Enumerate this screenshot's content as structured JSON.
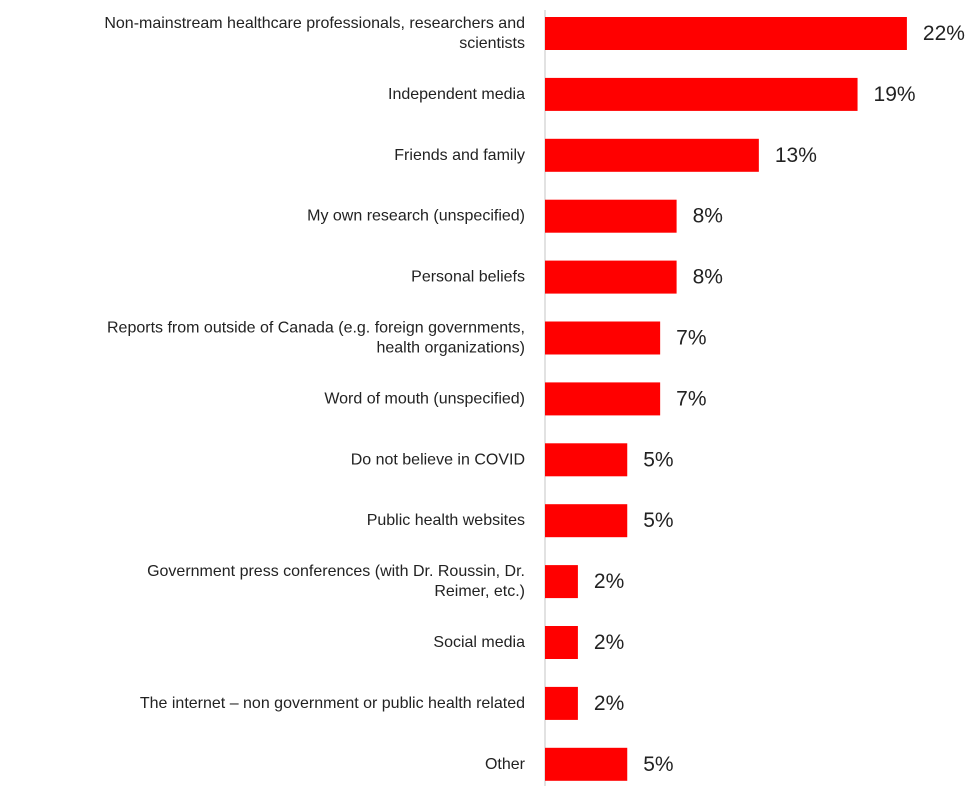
{
  "chart_data": {
    "type": "bar",
    "orientation": "horizontal",
    "categories": [
      "Non-mainstream healthcare professionals, researchers and scientists",
      "Independent media",
      "Friends and family",
      "My own research (unspecified)",
      "Personal beliefs",
      "Reports from outside of Canada (e.g. foreign governments, health organizations)",
      "Word of mouth (unspecified)",
      "Do not believe in COVID",
      "Public health websites",
      "Government press conferences (with Dr. Roussin, Dr. Reimer, etc.)",
      "Social media",
      "The internet – non government or public health related",
      "Other"
    ],
    "label_lines": [
      [
        "Non-mainstream healthcare professionals, researchers and",
        "scientists"
      ],
      [
        "Independent media"
      ],
      [
        "Friends and family"
      ],
      [
        "My own research (unspecified)"
      ],
      [
        "Personal beliefs"
      ],
      [
        "Reports from outside of Canada (e.g. foreign governments,",
        "health organizations)"
      ],
      [
        "Word of mouth (unspecified)"
      ],
      [
        "Do not believe in COVID"
      ],
      [
        "Public health websites"
      ],
      [
        "Government press conferences (with Dr. Roussin, Dr.",
        "Reimer, etc.)"
      ],
      [
        "Social media"
      ],
      [
        "The internet – non government or public health related"
      ],
      [
        "Other"
      ]
    ],
    "values": [
      22,
      19,
      13,
      8,
      8,
      7,
      7,
      5,
      5,
      2,
      2,
      2,
      5
    ],
    "value_labels": [
      "22%",
      "19%",
      "13%",
      "8%",
      "8%",
      "7%",
      "7%",
      "5%",
      "5%",
      "2%",
      "2%",
      "2%",
      "5%"
    ],
    "unit": "%",
    "bar_color": "#ff0000",
    "axis_color": "#d9d9d9",
    "xlim": [
      0,
      22
    ],
    "grid": false,
    "legend": "none"
  }
}
